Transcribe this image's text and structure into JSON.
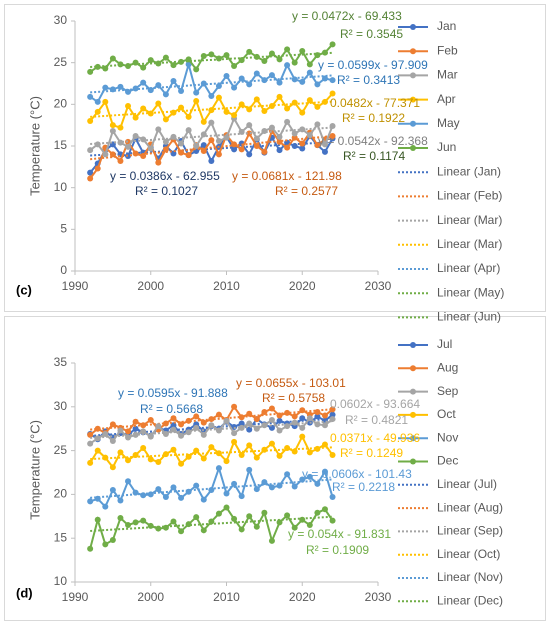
{
  "chart_data": [
    {
      "type": "line",
      "panel_label": "(c)",
      "y_label": "Temperature (°C)",
      "x": [
        1992,
        1993,
        1994,
        1995,
        1996,
        1997,
        1998,
        1999,
        2000,
        2001,
        2002,
        2003,
        2004,
        2005,
        2006,
        2007,
        2008,
        2009,
        2010,
        2011,
        2012,
        2013,
        2014,
        2015,
        2016,
        2017,
        2018,
        2019,
        2020,
        2021,
        2022,
        2023,
        2024
      ],
      "xlim": [
        1990,
        2030
      ],
      "xticks": [
        1990,
        2000,
        2010,
        2020,
        2030
      ],
      "ylim": [
        0,
        30
      ],
      "yticks": [
        0,
        5,
        10,
        15,
        20,
        25,
        30
      ],
      "grid": false,
      "series": [
        {
          "name": "Jan",
          "color": "#4472c4",
          "trend_name": "Linear (Jan)",
          "values": [
            11.8,
            12.9,
            14.5,
            15.2,
            14.0,
            13.8,
            15.9,
            14.2,
            14.8,
            13.5,
            15.0,
            14.1,
            15.6,
            13.9,
            14.4,
            15.1,
            13.2,
            14.9,
            16.1,
            14.6,
            15.3,
            14.0,
            15.8,
            14.2,
            16.0,
            14.5,
            15.4,
            15.0,
            14.7,
            16.2,
            15.1,
            14.3,
            15.9
          ]
        },
        {
          "name": "Feb",
          "color": "#ed7d31",
          "trend_name": "Linear (Feb)",
          "values": [
            11.1,
            12.3,
            14.8,
            14.0,
            13.2,
            15.5,
            14.1,
            13.8,
            15.2,
            13.0,
            14.6,
            15.8,
            14.2,
            13.9,
            15.1,
            14.4,
            15.7,
            14.0,
            16.3,
            15.2,
            14.6,
            16.5,
            15.0,
            14.3,
            16.8,
            15.5,
            14.8,
            16.0,
            15.3,
            16.6,
            15.1,
            15.8,
            16.2
          ]
        },
        {
          "name": "Mar",
          "color": "#a5a5a5",
          "trend_name": "Linear (Mar)",
          "values": [
            14.5,
            15.2,
            14.0,
            16.8,
            15.4,
            14.9,
            16.2,
            15.8,
            14.7,
            17.0,
            15.5,
            16.1,
            15.3,
            16.9,
            15.0,
            16.4,
            17.8,
            15.6,
            16.0,
            18.3,
            16.7,
            17.5,
            15.9,
            16.8,
            17.2,
            16.1,
            17.9,
            16.5,
            17.0,
            16.3,
            17.6,
            15.2,
            17.4
          ]
        },
        {
          "name": "Apr",
          "color": "#ffc000",
          "trend_name": "Linear (Mar)",
          "values": [
            18.0,
            19.1,
            20.3,
            17.5,
            17.2,
            19.8,
            18.4,
            19.5,
            18.9,
            20.1,
            18.2,
            19.0,
            19.6,
            18.5,
            20.4,
            17.9,
            19.3,
            20.8,
            19.1,
            18.7,
            20.0,
            19.4,
            20.6,
            19.2,
            19.8,
            20.9,
            19.5,
            20.2,
            19.0,
            20.5,
            19.7,
            20.3,
            21.3
          ]
        },
        {
          "name": "May",
          "color": "#5b9bd5",
          "trend_name": "Linear (Apr)",
          "values": [
            20.9,
            20.3,
            22.0,
            21.8,
            22.1,
            21.5,
            21.9,
            22.6,
            21.7,
            22.3,
            21.2,
            22.8,
            21.6,
            24.8,
            21.4,
            22.5,
            21.0,
            22.2,
            23.4,
            22.0,
            23.1,
            22.4,
            23.7,
            22.9,
            23.5,
            22.6,
            24.7,
            23.0,
            22.7,
            23.8,
            22.4,
            23.1,
            22.9
          ]
        },
        {
          "name": "Jun",
          "color": "#70ad47",
          "trend_name": "Linear (May)",
          "values": [
            23.9,
            24.5,
            24.3,
            25.5,
            24.8,
            24.6,
            25.0,
            24.4,
            25.3,
            24.9,
            25.6,
            24.7,
            25.1,
            25.4,
            24.2,
            25.8,
            26.0,
            25.5,
            25.9,
            24.6,
            25.3,
            26.3,
            25.7,
            25.2,
            26.1,
            25.4,
            26.6,
            25.0,
            26.4,
            24.8,
            25.9,
            26.2,
            27.2
          ]
        }
      ],
      "extra_legend": "Linear (Jun)",
      "annotations": [
        {
          "text": "y = 0.0472x - 69.433",
          "color": "#548235"
        },
        {
          "text": "R² = 0.3545",
          "color": "#548235"
        },
        {
          "text": "y = 0.0599x - 97.909",
          "color": "#2e75b6"
        },
        {
          "text": "R² = 0.3413",
          "color": "#2e75b6"
        },
        {
          "text": "0.0482x - 77.371",
          "color": "#bf9000"
        },
        {
          "text": "R² = 0.1922",
          "color": "#bf9000"
        },
        {
          "text": "y = 0.0542x - 92.368",
          "color": "#7f7f7f"
        },
        {
          "text": "R² = 0.1174",
          "color": "#375623"
        },
        {
          "text": "y = 0.0386x - 62.955",
          "color": "#1f3864"
        },
        {
          "text": "R² = 0.1027",
          "color": "#1f3864"
        },
        {
          "text": "y = 0.0681x - 121.98",
          "color": "#c55a11"
        },
        {
          "text": "R² = 0.2577",
          "color": "#c55a11"
        }
      ]
    },
    {
      "type": "line",
      "panel_label": "(d)",
      "y_label": "Temperature (°C)",
      "x": [
        1992,
        1993,
        1994,
        1995,
        1996,
        1997,
        1998,
        1999,
        2000,
        2001,
        2002,
        2003,
        2004,
        2005,
        2006,
        2007,
        2008,
        2009,
        2010,
        2011,
        2012,
        2013,
        2014,
        2015,
        2016,
        2017,
        2018,
        2019,
        2020,
        2021,
        2022,
        2023,
        2024
      ],
      "xlim": [
        1990,
        2030
      ],
      "xticks": [
        1990,
        2000,
        2010,
        2020,
        2030
      ],
      "ylim": [
        10,
        35
      ],
      "yticks": [
        10,
        15,
        20,
        25,
        30,
        35
      ],
      "grid": false,
      "series": [
        {
          "name": "Jul",
          "color": "#4472c4",
          "trend_name": "Linear (Jul)",
          "values": [
            26.9,
            26.3,
            27.2,
            26.5,
            27.0,
            26.8,
            27.5,
            27.1,
            26.7,
            27.6,
            27.3,
            27.9,
            26.9,
            27.4,
            28.0,
            27.2,
            27.8,
            27.5,
            28.3,
            27.7,
            28.1,
            27.4,
            28.6,
            28.0,
            27.6,
            28.4,
            28.1,
            27.8,
            28.7,
            28.2,
            28.9,
            28.4,
            29.1
          ]
        },
        {
          "name": "Aug",
          "color": "#ed7d31",
          "trend_name": "Linear (Aug)",
          "values": [
            26.8,
            27.5,
            27.0,
            28.0,
            27.6,
            27.2,
            28.3,
            27.9,
            28.5,
            27.4,
            28.1,
            28.7,
            28.0,
            28.4,
            28.9,
            28.2,
            28.6,
            29.1,
            28.5,
            30.0,
            28.8,
            29.2,
            28.6,
            29.4,
            29.8,
            29.0,
            29.3,
            28.9,
            29.6,
            29.1,
            29.4,
            29.0,
            29.7
          ]
        },
        {
          "name": "Sep",
          "color": "#a5a5a5",
          "trend_name": "Linear (Sep)",
          "values": [
            25.8,
            26.4,
            26.9,
            26.1,
            27.3,
            26.5,
            26.8,
            27.2,
            26.6,
            27.8,
            26.9,
            27.4,
            26.7,
            27.1,
            27.6,
            26.8,
            27.9,
            27.3,
            28.4,
            27.0,
            27.6,
            28.1,
            27.5,
            27.9,
            28.5,
            27.3,
            27.8,
            28.2,
            27.6,
            28.7,
            28.0,
            27.9,
            28.6
          ]
        },
        {
          "name": "Oct",
          "color": "#ffc000",
          "trend_name": "Linear (Oct)",
          "values": [
            23.6,
            25.0,
            24.2,
            23.1,
            24.8,
            23.9,
            24.5,
            25.3,
            24.0,
            23.7,
            24.6,
            25.1,
            23.5,
            24.3,
            25.0,
            24.1,
            25.4,
            24.7,
            23.8,
            26.0,
            24.5,
            25.6,
            24.2,
            25.1,
            25.8,
            24.4,
            25.3,
            24.9,
            26.6,
            24.8,
            25.2,
            25.7,
            24.5
          ]
        },
        {
          "name": "Nov",
          "color": "#5b9bd5",
          "trend_name": "Linear (Nov)",
          "values": [
            19.2,
            19.5,
            18.6,
            20.5,
            19.3,
            21.5,
            20.2,
            19.9,
            20.0,
            20.6,
            19.7,
            20.8,
            19.6,
            20.3,
            21.0,
            19.4,
            20.5,
            23.0,
            20.1,
            21.2,
            19.8,
            22.8,
            20.6,
            21.4,
            20.8,
            21.0,
            22.3,
            20.9,
            21.7,
            22.0,
            21.2,
            22.6,
            19.7
          ]
        },
        {
          "name": "Dec",
          "color": "#70ad47",
          "trend_name": "Linear (Dec)",
          "values": [
            13.8,
            17.1,
            14.3,
            14.8,
            17.3,
            16.5,
            16.8,
            17.0,
            16.4,
            16.1,
            16.2,
            16.9,
            15.8,
            16.6,
            17.4,
            15.9,
            16.9,
            17.8,
            18.5,
            17.2,
            16.0,
            17.5,
            16.3,
            17.9,
            14.7,
            16.8,
            17.6,
            16.2,
            17.1,
            16.5,
            17.9,
            18.3,
            17.0
          ]
        }
      ],
      "annotations": [
        {
          "text": "y = 0.0595x - 91.888",
          "color": "#2e75b6"
        },
        {
          "text": "R² = 0.5668",
          "color": "#2e75b6"
        },
        {
          "text": "y = 0.0655x - 103.01",
          "color": "#c55a11"
        },
        {
          "text": "R² = 0.5758",
          "color": "#c55a11"
        },
        {
          "text": "0.0602x - 93.664",
          "color": "#a5a5a5"
        },
        {
          "text": "R² = 0.4821",
          "color": "#a5a5a5"
        },
        {
          "text": "0.0371x - 49.936",
          "color": "#ffc000"
        },
        {
          "text": "R² = 0.1249",
          "color": "#ffc000"
        },
        {
          "text": "y = 0.0606x - 101.43",
          "color": "#5b9bd5"
        },
        {
          "text": "R² = 0.2218",
          "color": "#5b9bd5"
        },
        {
          "text": "y = 0.054x - 91.831",
          "color": "#70ad47"
        },
        {
          "text": "R² = 0.1909",
          "color": "#70ad47"
        }
      ]
    }
  ]
}
